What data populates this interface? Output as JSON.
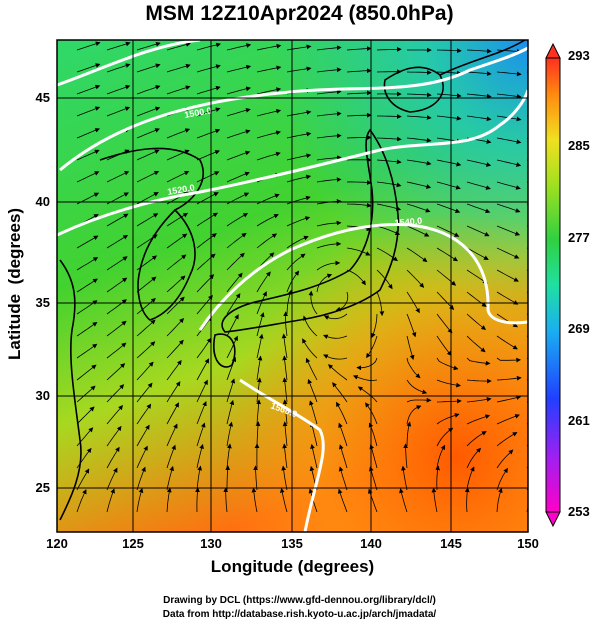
{
  "title": "MSM 12Z10Apr2024 (850.0hPa)",
  "x_axis": {
    "label": "Longitude (degrees)",
    "ticks": [
      "120",
      "125",
      "130",
      "135",
      "140",
      "145",
      "150"
    ]
  },
  "y_axis": {
    "label": "Latitude  (degrees)",
    "ticks": [
      "25",
      "30",
      "35",
      "40",
      "45"
    ]
  },
  "colorbar": {
    "ticks": [
      "293",
      "285",
      "277",
      "269",
      "261",
      "253"
    ]
  },
  "contour_labels": [
    "1500.0",
    "1520.0",
    "1540.0",
    "1560.0"
  ],
  "credits": {
    "line1": "Drawing by DCL (https://www.gfd-dennou.org/library/dcl/)",
    "line2": "Data from http://database.rish.kyoto-u.ac.jp/arch/jmadata/"
  },
  "map_data": {
    "extent": {
      "lon": [
        120,
        150
      ],
      "lat": [
        22.5,
        47.6
      ]
    },
    "variable_range": [
      253,
      293
    ],
    "colors": {
      "warm": "#ff6a00",
      "mid": "#2ed03a",
      "cool": "#1aa6e6",
      "contour": "#ffffff",
      "coast": "#000000"
    }
  }
}
